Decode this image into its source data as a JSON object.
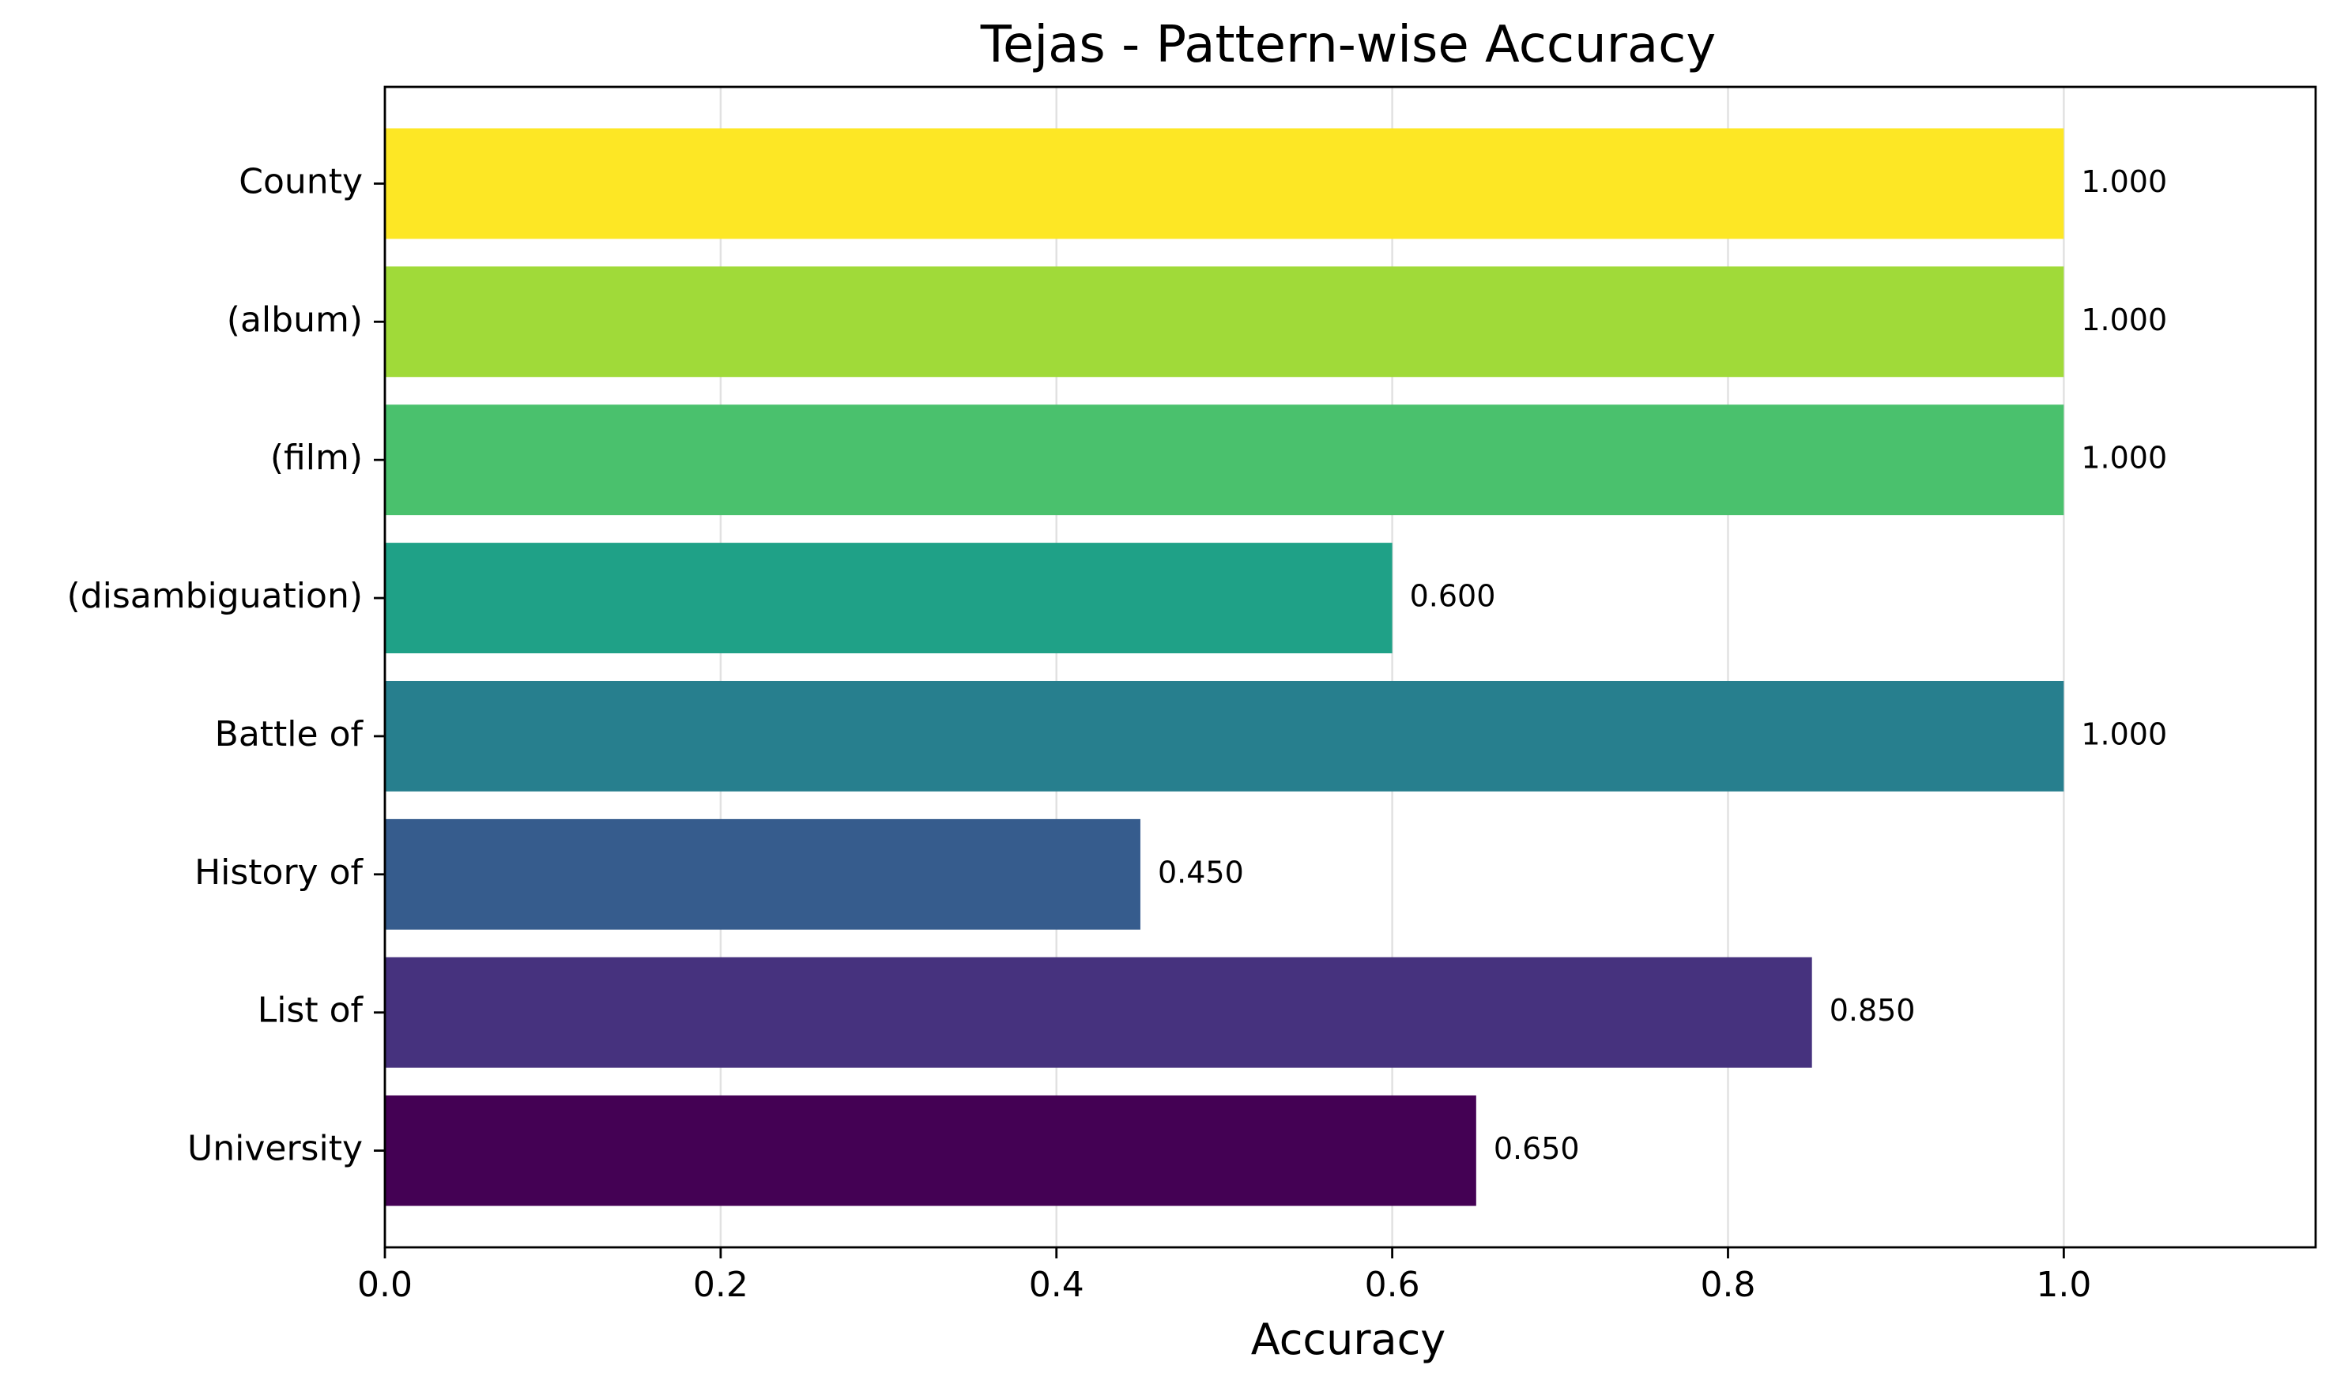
{
  "chart_data": {
    "type": "bar",
    "orientation": "horizontal",
    "title": "Tejas - Pattern-wise Accuracy",
    "xlabel": "Accuracy",
    "ylabel": "",
    "xlim": [
      0,
      1.15
    ],
    "xticks": [
      0.0,
      0.2,
      0.4,
      0.6,
      0.8,
      1.0
    ],
    "xtick_labels": [
      "0.0",
      "0.2",
      "0.4",
      "0.6",
      "0.8",
      "1.0"
    ],
    "grid": "x",
    "categories": [
      "County",
      "(album)",
      "(film)",
      "(disambiguation)",
      "Battle of",
      "History of",
      "List of",
      "University"
    ],
    "values": [
      1.0,
      1.0,
      1.0,
      0.6,
      1.0,
      0.45,
      0.85,
      0.65
    ],
    "data_labels": [
      "1.000",
      "1.000",
      "1.000",
      "0.600",
      "1.000",
      "0.450",
      "0.850",
      "0.650"
    ],
    "colors": [
      "#fde725",
      "#a0da39",
      "#4ac16d",
      "#1fa187",
      "#277f8e",
      "#365c8d",
      "#46327e",
      "#440154"
    ]
  }
}
